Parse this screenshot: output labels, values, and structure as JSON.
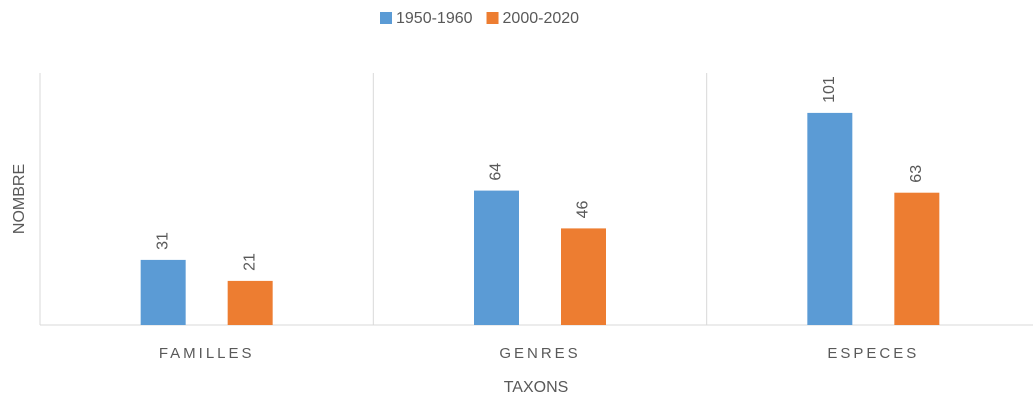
{
  "chart_data": {
    "type": "bar",
    "x_label": "TAXONS",
    "y_label": "NOMBRE",
    "categories": [
      "FAMILLES",
      "GENRES",
      "ESPECES"
    ],
    "series": [
      {
        "name": "1950-1960",
        "color": "#5b9bd5",
        "values": [
          31,
          64,
          101
        ]
      },
      {
        "name": "2000-2020",
        "color": "#ed7d31",
        "values": [
          21,
          46,
          63
        ]
      }
    ],
    "ylim": [
      0,
      120
    ],
    "legend": "top"
  }
}
